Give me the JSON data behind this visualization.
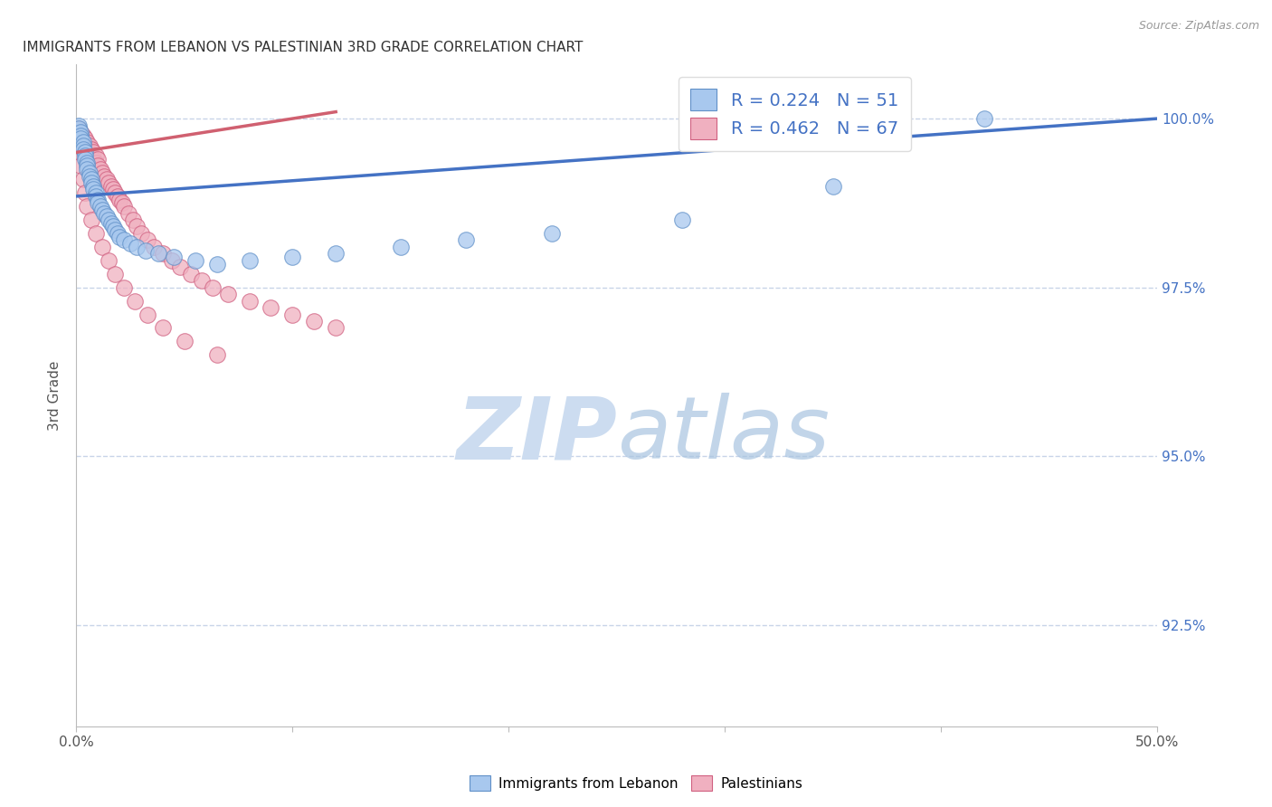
{
  "title": "IMMIGRANTS FROM LEBANON VS PALESTINIAN 3RD GRADE CORRELATION CHART",
  "source": "Source: ZipAtlas.com",
  "ylabel": "3rd Grade",
  "yticks": [
    92.5,
    95.0,
    97.5,
    100.0
  ],
  "ytick_labels": [
    "92.5%",
    "95.0%",
    "97.5%",
    "100.0%"
  ],
  "xmin": 0.0,
  "xmax": 0.5,
  "ymin": 91.0,
  "ymax": 100.8,
  "legend_label1": "Immigrants from Lebanon",
  "legend_label2": "Palestinians",
  "blue_color": "#a8c8ee",
  "blue_edge_color": "#6090c8",
  "pink_color": "#f0b0c0",
  "pink_edge_color": "#d06080",
  "blue_line_color": "#4472c4",
  "pink_line_color": "#d06070",
  "grid_color": "#c8d4e8",
  "right_axis_color": "#4472c4",
  "title_color": "#333333",
  "source_color": "#999999",
  "watermark_zip_color": "#ccdcf0",
  "watermark_atlas_color": "#a8c4e0",
  "scatter_leb_x": [
    0.001,
    0.001,
    0.002,
    0.002,
    0.002,
    0.003,
    0.003,
    0.003,
    0.004,
    0.004,
    0.004,
    0.005,
    0.005,
    0.005,
    0.006,
    0.006,
    0.007,
    0.007,
    0.008,
    0.008,
    0.009,
    0.009,
    0.01,
    0.01,
    0.011,
    0.012,
    0.013,
    0.014,
    0.015,
    0.016,
    0.017,
    0.018,
    0.019,
    0.02,
    0.022,
    0.025,
    0.028,
    0.032,
    0.038,
    0.045,
    0.055,
    0.065,
    0.08,
    0.1,
    0.12,
    0.15,
    0.18,
    0.22,
    0.28,
    0.35,
    0.42
  ],
  "scatter_leb_y": [
    99.9,
    99.85,
    99.8,
    99.75,
    99.7,
    99.65,
    99.6,
    99.55,
    99.5,
    99.45,
    99.4,
    99.35,
    99.3,
    99.25,
    99.2,
    99.15,
    99.1,
    99.05,
    99.0,
    98.95,
    98.9,
    98.85,
    98.8,
    98.75,
    98.7,
    98.65,
    98.6,
    98.55,
    98.5,
    98.45,
    98.4,
    98.35,
    98.3,
    98.25,
    98.2,
    98.15,
    98.1,
    98.05,
    98.0,
    97.95,
    97.9,
    97.85,
    97.9,
    97.95,
    98.0,
    98.1,
    98.2,
    98.3,
    98.5,
    99.0,
    100.0
  ],
  "scatter_pal_x": [
    0.001,
    0.001,
    0.002,
    0.002,
    0.003,
    0.003,
    0.003,
    0.004,
    0.004,
    0.005,
    0.005,
    0.006,
    0.006,
    0.007,
    0.007,
    0.008,
    0.008,
    0.009,
    0.009,
    0.01,
    0.01,
    0.011,
    0.012,
    0.013,
    0.014,
    0.015,
    0.016,
    0.017,
    0.018,
    0.019,
    0.02,
    0.021,
    0.022,
    0.024,
    0.026,
    0.028,
    0.03,
    0.033,
    0.036,
    0.04,
    0.044,
    0.048,
    0.053,
    0.058,
    0.063,
    0.07,
    0.08,
    0.09,
    0.1,
    0.11,
    0.12,
    0.001,
    0.002,
    0.003,
    0.004,
    0.005,
    0.007,
    0.009,
    0.012,
    0.015,
    0.018,
    0.022,
    0.027,
    0.033,
    0.04,
    0.05,
    0.065
  ],
  "scatter_pal_y": [
    99.85,
    99.75,
    99.8,
    99.7,
    99.75,
    99.65,
    99.55,
    99.7,
    99.6,
    99.65,
    99.55,
    99.6,
    99.5,
    99.55,
    99.45,
    99.5,
    99.4,
    99.45,
    99.35,
    99.4,
    99.3,
    99.25,
    99.2,
    99.15,
    99.1,
    99.05,
    99.0,
    98.95,
    98.9,
    98.85,
    98.8,
    98.75,
    98.7,
    98.6,
    98.5,
    98.4,
    98.3,
    98.2,
    98.1,
    98.0,
    97.9,
    97.8,
    97.7,
    97.6,
    97.5,
    97.4,
    97.3,
    97.2,
    97.1,
    97.0,
    96.9,
    99.5,
    99.3,
    99.1,
    98.9,
    98.7,
    98.5,
    98.3,
    98.1,
    97.9,
    97.7,
    97.5,
    97.3,
    97.1,
    96.9,
    96.7,
    96.5
  ],
  "blue_trendline_x": [
    0.0,
    0.5
  ],
  "blue_trendline_y": [
    98.85,
    100.0
  ],
  "pink_trendline_x": [
    0.0,
    0.12
  ],
  "pink_trendline_y": [
    99.5,
    100.1
  ]
}
